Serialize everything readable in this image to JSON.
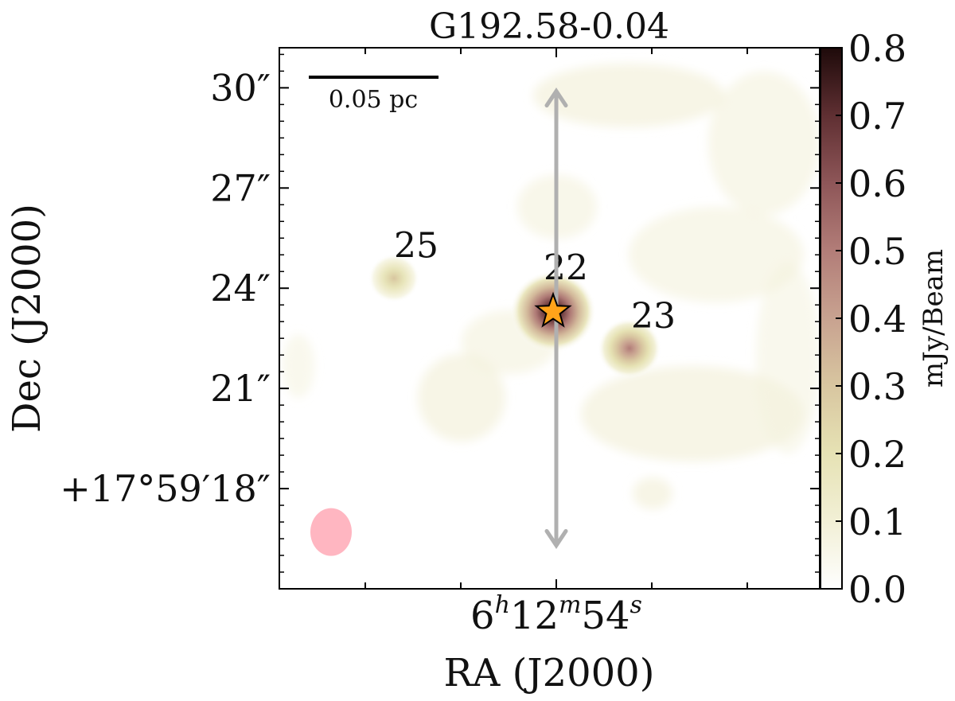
{
  "chart_data": {
    "type": "heatmap",
    "title": "G192.58-0.04",
    "xlabel": "RA (J2000)",
    "ylabel": "Dec (J2000)",
    "x_ticks": [
      {
        "ra_seconds": 54,
        "h": "6",
        "m": "12",
        "s": "54",
        "labeled": true
      }
    ],
    "y_ticks": [
      {
        "offset_arcsec": 30,
        "label": "30″"
      },
      {
        "offset_arcsec": 27,
        "label": "27″"
      },
      {
        "offset_arcsec": 24,
        "label": "24″"
      },
      {
        "offset_arcsec": 21,
        "label": "21″"
      },
      {
        "offset_arcsec": 18,
        "label": "+17°59′18″"
      }
    ],
    "ylim_arcsec": [
      15,
      31.2
    ],
    "colorbar": {
      "label": "mJy/Beam",
      "min": 0.0,
      "max": 0.8,
      "ticks": [
        "0.0",
        "0.1",
        "0.2",
        "0.3",
        "0.4",
        "0.5",
        "0.6",
        "0.7",
        "0.8"
      ],
      "colors": [
        "#fefefe",
        "#f2f0d6",
        "#e6e2b4",
        "#d8c6a0",
        "#c8a290",
        "#b27d78",
        "#8e5658",
        "#5f2f32",
        "#1e0a0a"
      ]
    },
    "scalebar": {
      "label": "0.05 pc"
    },
    "sources": [
      {
        "id": "22",
        "label": "22",
        "x_rel": -0.1,
        "dec_arcsec": 23.3,
        "peak_mJy": 0.85,
        "marker": "star",
        "marker_color": "#ffa31a"
      },
      {
        "id": "23",
        "label": "23",
        "x_rel": 2.3,
        "dec_arcsec": 22.2,
        "peak_mJy": 0.5
      },
      {
        "id": "25",
        "label": "25",
        "x_rel": -5.1,
        "dec_arcsec": 24.3,
        "peak_mJy": 0.3
      }
    ],
    "outflow_axis": {
      "color": "#b0b0b0",
      "dec_top_arcsec": 29.9,
      "dec_bottom_arcsec": 16.3
    },
    "beam": {
      "color": "#ffb6c1",
      "dec_arcsec": 16.7
    }
  }
}
